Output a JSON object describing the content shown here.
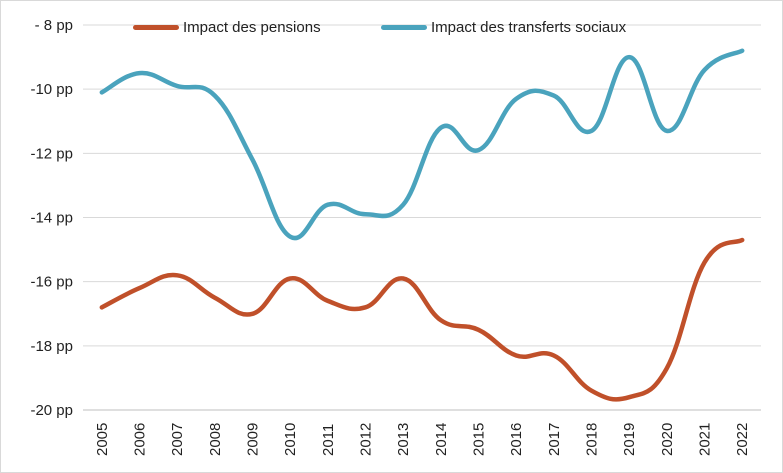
{
  "chart_data": {
    "type": "line",
    "title": "",
    "xlabel": "",
    "ylabel": "",
    "ylim": [
      -20,
      -8
    ],
    "y_ticks": [
      -8,
      -10,
      -12,
      -14,
      -16,
      -18,
      -20
    ],
    "y_tick_labels": [
      "- 8 pp",
      "-10 pp",
      "-12 pp",
      "-14 pp",
      "-16 pp",
      "-18 pp",
      "-20 pp"
    ],
    "grid": true,
    "legend_position": "top",
    "x": [
      "2005",
      "2006",
      "2007",
      "2008",
      "2009",
      "2010",
      "2011",
      "2012",
      "2013",
      "2014",
      "2015",
      "2016",
      "2017",
      "2018",
      "2019",
      "2020",
      "2021",
      "2022"
    ],
    "series": [
      {
        "name": "Impact des pensions",
        "color": "#c0502a",
        "values": [
          -16.8,
          -16.2,
          -15.8,
          -16.5,
          -17.0,
          -15.9,
          -16.6,
          -16.8,
          -15.9,
          -17.2,
          -17.5,
          -18.3,
          -18.3,
          -19.4,
          -19.6,
          -18.7,
          -15.4,
          -14.7
        ]
      },
      {
        "name": "Impact des transferts sociaux",
        "color": "#4aa3bd",
        "values": [
          -10.1,
          -9.5,
          -9.9,
          -10.2,
          -12.2,
          -14.6,
          -13.6,
          -13.9,
          -13.6,
          -11.2,
          -11.9,
          -10.3,
          -10.2,
          -11.3,
          -9.0,
          -11.3,
          -9.4,
          -8.8
        ]
      }
    ]
  }
}
